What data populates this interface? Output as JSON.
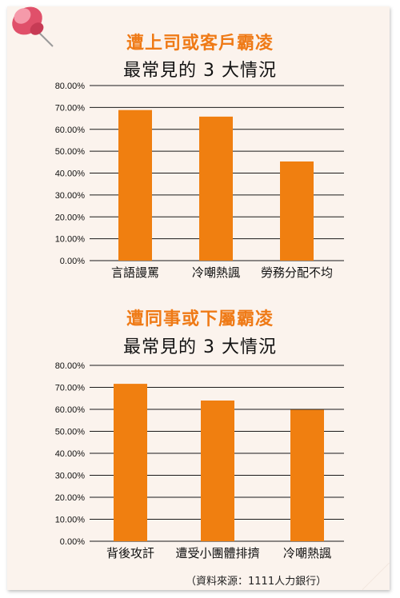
{
  "chart_data": [
    {
      "type": "bar",
      "title": "遭上司或客戶霸凌",
      "subtitle": "最常見的 3 大情況",
      "categories": [
        "言語謾罵",
        "冷嘲熱諷",
        "勞務分配不均"
      ],
      "values": [
        68.8,
        65.8,
        45.3
      ],
      "yticks": [
        "80.00%",
        "70.00%",
        "60.00%",
        "50.00%",
        "40.00%",
        "30.00%",
        "20.00%",
        "10.00%",
        "0.00%"
      ],
      "ylim": [
        0,
        80
      ],
      "grid": true,
      "bar_color": "#f07f10"
    },
    {
      "type": "bar",
      "title": "遭同事或下屬霸凌",
      "subtitle": "最常見的 3 大情況",
      "categories": [
        "背後攻訐",
        "遭受小團體排擠",
        "冷嘲熱諷"
      ],
      "values": [
        71.6,
        64.0,
        59.8
      ],
      "yticks": [
        "80.00%",
        "70.00%",
        "60.00%",
        "50.00%",
        "40.00%",
        "30.00%",
        "20.00%",
        "10.00%",
        "0.00%"
      ],
      "ylim": [
        0,
        80
      ],
      "grid": true,
      "bar_color": "#f07f10"
    }
  ],
  "footnote": "（資料來源：1111人力銀行）",
  "colors": {
    "accent": "#ef7a16",
    "card_bg": "#fbf3ed",
    "pin": "#e0506a"
  }
}
